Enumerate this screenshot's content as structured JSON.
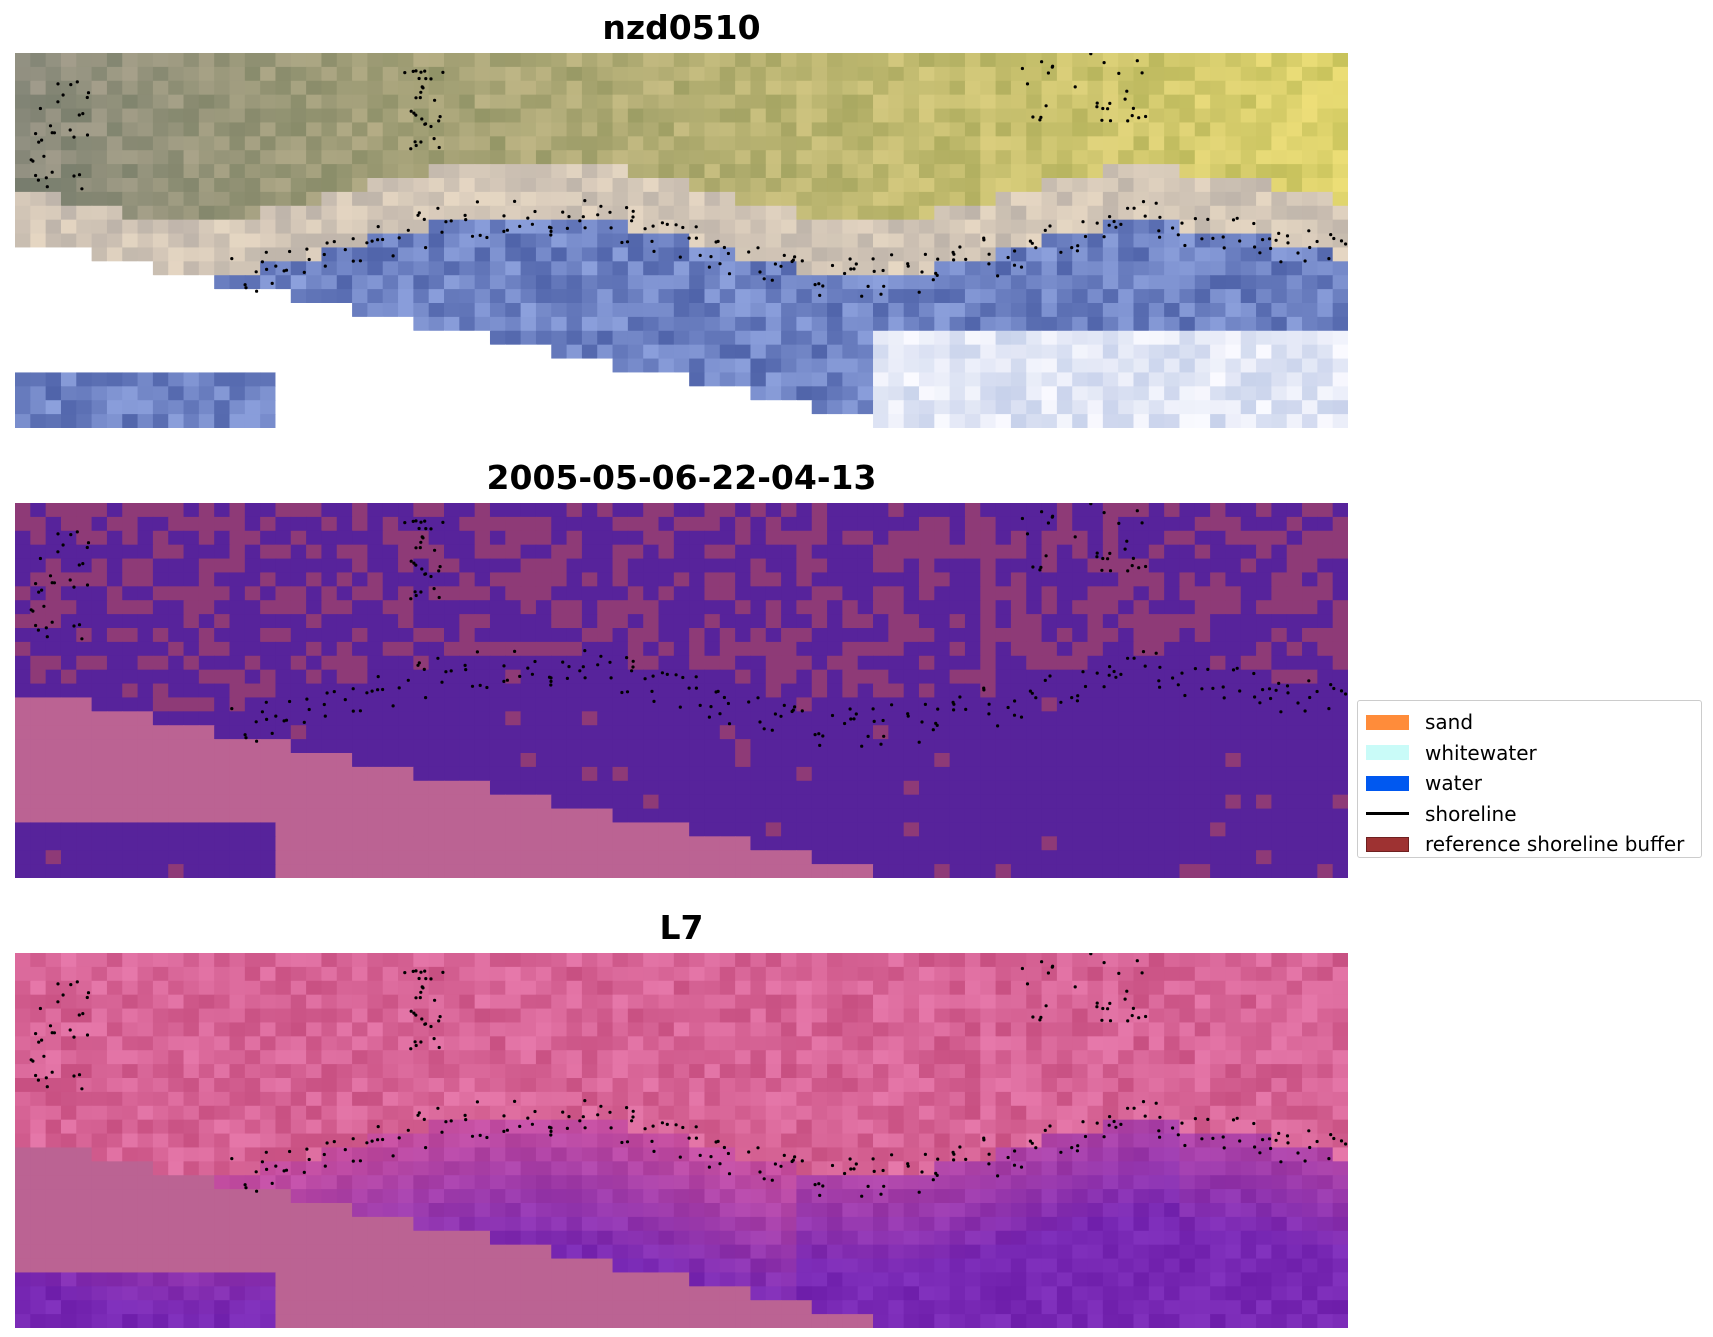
{
  "panels": [
    {
      "title": "nzd0510",
      "kind": "rgb"
    },
    {
      "title": "2005-05-06-22-04-13",
      "kind": "classified"
    },
    {
      "title": "L7",
      "kind": "ndwi"
    }
  ],
  "legend": {
    "items": [
      {
        "label": "sand",
        "type": "patch",
        "color": "#ff8c3a"
      },
      {
        "label": "whitewater",
        "type": "patch",
        "color": "#c9fbf8"
      },
      {
        "label": "water",
        "type": "patch",
        "color": "#0058f0"
      },
      {
        "label": "shoreline",
        "type": "line",
        "color": "#000000"
      },
      {
        "label": "reference shoreline buffer",
        "type": "patch",
        "color": "#9e3232",
        "edge": "#6e2020"
      }
    ]
  },
  "colors": {
    "nodata": "#ffffff",
    "masked_pink": "#bb6393",
    "classified_water": "#57239b",
    "classified_buffer": "#8e3a77",
    "shoreline_points": "#000000"
  }
}
